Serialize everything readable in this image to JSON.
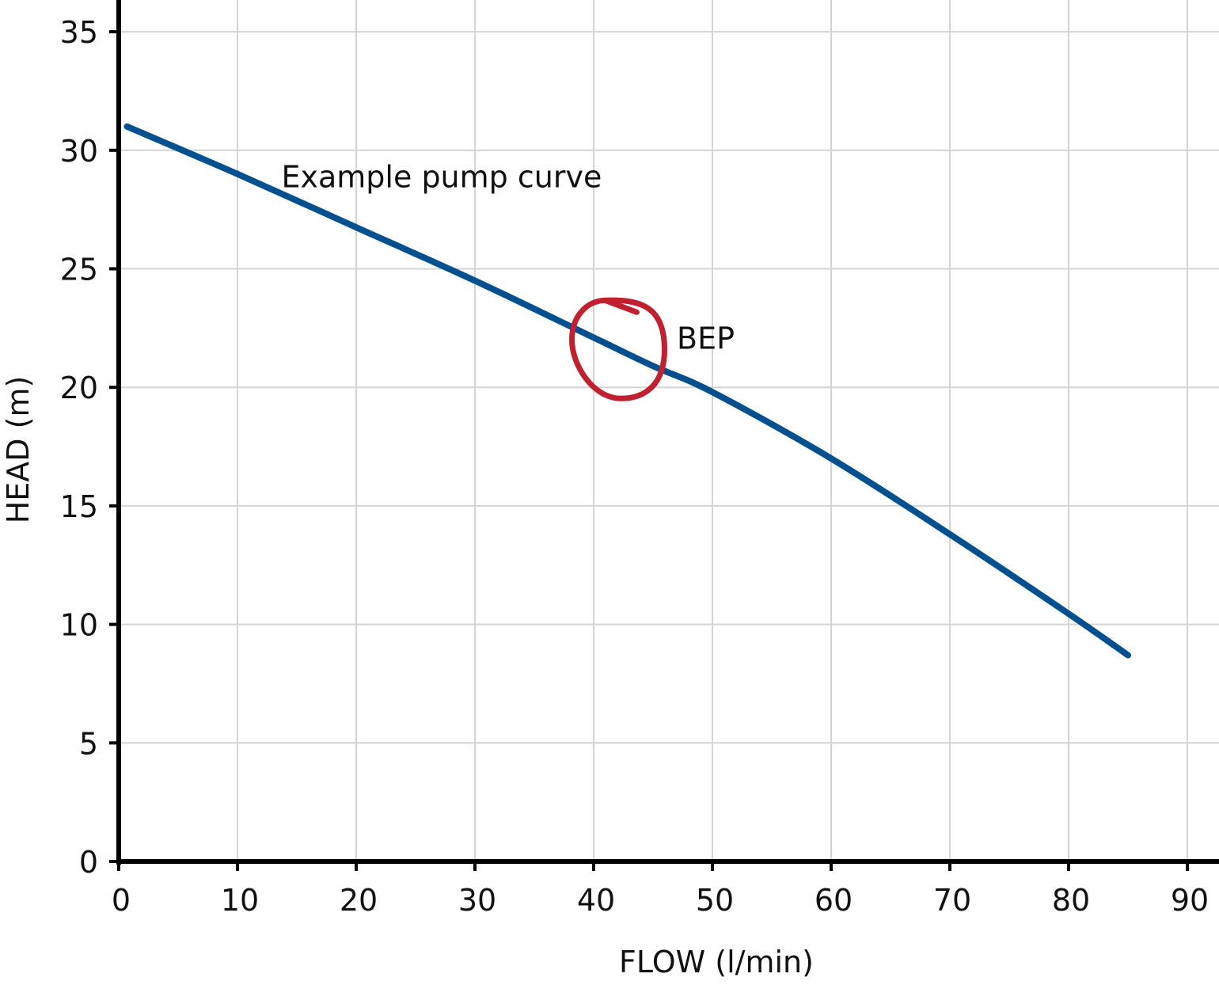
{
  "chart_data": {
    "type": "line",
    "title": "",
    "xlabel": "FLOW (l/min)",
    "ylabel": "HEAD (m)",
    "xlim": [
      0,
      92.7
    ],
    "ylim": [
      0,
      36.3
    ],
    "xticks": [
      0,
      10,
      20,
      30,
      40,
      50,
      60,
      70,
      80,
      90
    ],
    "yticks": [
      0,
      5,
      10,
      15,
      20,
      25,
      30,
      35
    ],
    "grid": true,
    "series": [
      {
        "name": "Example pump curve",
        "color": "#00508f",
        "x": [
          0.7,
          10,
          20,
          30,
          40,
          45,
          50,
          60,
          70,
          80,
          85
        ],
        "y": [
          31.0,
          29.0,
          26.75,
          24.5,
          22.1,
          20.9,
          19.8,
          17.0,
          13.8,
          10.45,
          8.7
        ]
      }
    ],
    "annotations": [
      {
        "text": "Example pump curve",
        "x": 13.7,
        "y": 28.9
      },
      {
        "text": "BEP",
        "x": 47,
        "y": 22.1,
        "marker": "circle",
        "marker_x": 42.3,
        "marker_y": 21.6,
        "color": "#c0202f"
      }
    ]
  }
}
